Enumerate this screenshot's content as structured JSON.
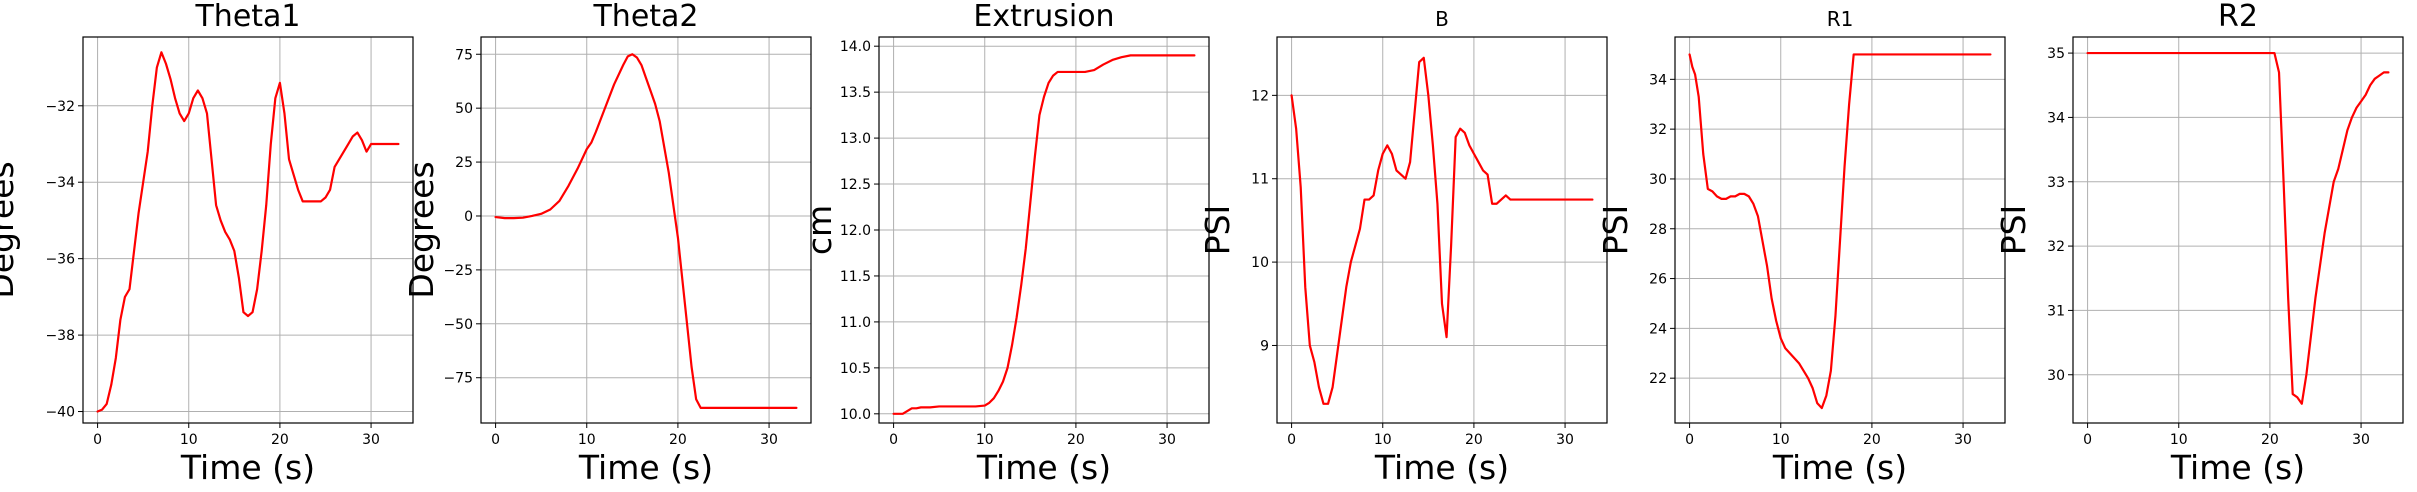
{
  "chart_data": [
    {
      "type": "line",
      "title": "Theta1",
      "xlabel": "Time (s)",
      "ylabel": "Degrees",
      "grid": true,
      "xlim": [
        -1.6,
        34.6
      ],
      "ylim": [
        -40.3,
        -30.2
      ],
      "xticks": [
        0,
        10,
        20,
        30
      ],
      "yticks": [
        -40,
        -38,
        -36,
        -34,
        -32
      ],
      "series": [
        {
          "color": "#ff0000",
          "x": [
            0,
            0.5,
            1,
            1.5,
            2,
            2.5,
            3,
            3.5,
            4,
            4.5,
            5,
            5.5,
            6,
            6.5,
            7,
            7.5,
            8,
            8.5,
            9,
            9.5,
            10,
            10.5,
            11,
            11.5,
            12,
            12.5,
            13,
            13.5,
            14,
            14.5,
            15,
            15.5,
            16,
            16.5,
            17,
            17.5,
            18,
            18.5,
            19,
            19.5,
            20,
            20.5,
            21,
            21.5,
            22,
            22.5,
            23,
            23.5,
            24,
            24.5,
            25,
            25.5,
            26,
            26.5,
            27,
            27.5,
            28,
            28.5,
            29,
            29.5,
            30,
            30.5,
            31,
            31.5,
            32,
            32.5,
            33
          ],
          "y": [
            -40.0,
            -39.95,
            -39.8,
            -39.3,
            -38.6,
            -37.6,
            -37.0,
            -36.8,
            -35.8,
            -34.8,
            -34.0,
            -33.2,
            -32.0,
            -31.0,
            -30.6,
            -30.9,
            -31.3,
            -31.8,
            -32.2,
            -32.4,
            -32.2,
            -31.8,
            -31.6,
            -31.8,
            -32.2,
            -33.4,
            -34.6,
            -35.0,
            -35.3,
            -35.5,
            -35.8,
            -36.5,
            -37.4,
            -37.5,
            -37.4,
            -36.8,
            -35.8,
            -34.6,
            -33.0,
            -31.8,
            -31.4,
            -32.2,
            -33.4,
            -33.8,
            -34.2,
            -34.5,
            -34.5,
            -34.5,
            -34.5,
            -34.5,
            -34.4,
            -34.2,
            -33.6,
            -33.4,
            -33.2,
            -33.0,
            -32.8,
            -32.7,
            -32.9,
            -33.2,
            -33.0,
            -33.0,
            -33.0,
            -33.0,
            -33.0,
            -33.0,
            -33.0
          ]
        }
      ]
    },
    {
      "type": "line",
      "title": "Theta2",
      "xlabel": "Time (s)",
      "ylabel": "Degrees",
      "grid": true,
      "xlim": [
        -1.6,
        34.6
      ],
      "ylim": [
        -96,
        83
      ],
      "xticks": [
        0,
        10,
        20,
        30
      ],
      "yticks": [
        -75,
        -50,
        -25,
        0,
        25,
        50,
        75
      ],
      "series": [
        {
          "color": "#ff0000",
          "x": [
            0,
            1,
            2,
            3,
            4,
            5,
            6,
            7,
            8,
            9,
            10,
            10.5,
            11,
            12,
            13,
            14,
            14.5,
            15,
            15.5,
            16,
            16.5,
            17,
            17.5,
            18,
            19,
            20,
            21,
            21.5,
            22,
            22.5,
            23,
            25,
            27,
            29,
            31,
            33
          ],
          "y": [
            -0.5,
            -1,
            -1,
            -0.8,
            0,
            1,
            3,
            7,
            14,
            22,
            31,
            34,
            39,
            50,
            61,
            70,
            74,
            75,
            73.5,
            70,
            64,
            58,
            52,
            44,
            20,
            -10,
            -50,
            -70,
            -85,
            -89,
            -89,
            -89,
            -89,
            -89,
            -89,
            -89
          ]
        }
      ]
    },
    {
      "type": "line",
      "title": "Extrusion",
      "xlabel": "Time (s)",
      "ylabel": "cm",
      "grid": true,
      "xlim": [
        -1.6,
        34.6
      ],
      "ylim": [
        9.9,
        14.1
      ],
      "xticks": [
        0,
        10,
        20,
        30
      ],
      "yticks": [
        10.0,
        10.5,
        11.0,
        11.5,
        12.0,
        12.5,
        13.0,
        13.5,
        14.0
      ],
      "series": [
        {
          "color": "#ff0000",
          "x": [
            0,
            1,
            1.5,
            2,
            2.5,
            3,
            4,
            5,
            6,
            7,
            8,
            9,
            10,
            10.5,
            11,
            11.5,
            12,
            12.5,
            13,
            13.5,
            14,
            14.5,
            15,
            15.5,
            16,
            16.5,
            17,
            17.5,
            18,
            18.5,
            19,
            20,
            21,
            22,
            23,
            24,
            25,
            26,
            27,
            28,
            29,
            30,
            31,
            32,
            33
          ],
          "y": [
            10.0,
            10.0,
            10.03,
            10.06,
            10.06,
            10.07,
            10.07,
            10.08,
            10.08,
            10.08,
            10.08,
            10.08,
            10.09,
            10.12,
            10.17,
            10.25,
            10.35,
            10.5,
            10.75,
            11.05,
            11.4,
            11.8,
            12.3,
            12.8,
            13.25,
            13.45,
            13.6,
            13.68,
            13.72,
            13.72,
            13.72,
            13.72,
            13.72,
            13.74,
            13.8,
            13.85,
            13.88,
            13.9,
            13.9,
            13.9,
            13.9,
            13.9,
            13.9,
            13.9,
            13.9
          ]
        }
      ]
    },
    {
      "type": "line",
      "title": "B",
      "xlabel": "Time (s)",
      "ylabel": "PSI",
      "grid": true,
      "xlim": [
        -1.6,
        34.6
      ],
      "ylim": [
        8.07,
        12.7
      ],
      "xticks": [
        0,
        10,
        20,
        30
      ],
      "yticks": [
        9,
        10,
        11,
        12
      ],
      "series": [
        {
          "color": "#ff0000",
          "x": [
            0,
            0.5,
            1,
            1.5,
            2,
            2.5,
            3,
            3.5,
            4,
            4.5,
            5,
            5.5,
            6,
            6.5,
            7,
            7.5,
            8,
            8.5,
            9,
            9.5,
            10,
            10.5,
            11,
            11.5,
            12,
            12.5,
            13,
            13.5,
            14,
            14.5,
            15,
            15.5,
            16,
            16.5,
            17,
            17.5,
            18,
            18.5,
            19,
            19.5,
            20,
            20.5,
            21,
            21.5,
            22,
            22.5,
            23,
            23.5,
            24,
            24.5,
            25,
            25.5,
            26,
            26.5,
            27,
            27.5,
            28,
            28.5,
            29,
            29.5,
            30,
            30.5,
            31,
            31.5,
            32,
            32.5,
            33
          ],
          "y": [
            12.0,
            11.6,
            10.9,
            9.7,
            9.0,
            8.8,
            8.5,
            8.3,
            8.3,
            8.5,
            8.9,
            9.3,
            9.7,
            10.0,
            10.2,
            10.4,
            10.75,
            10.75,
            10.8,
            11.1,
            11.3,
            11.4,
            11.3,
            11.1,
            11.05,
            11.0,
            11.2,
            11.8,
            12.4,
            12.45,
            12.0,
            11.4,
            10.7,
            9.5,
            9.1,
            10.2,
            11.5,
            11.6,
            11.55,
            11.4,
            11.3,
            11.2,
            11.1,
            11.05,
            10.7,
            10.7,
            10.75,
            10.8,
            10.75,
            10.75,
            10.75,
            10.75,
            10.75,
            10.75,
            10.75,
            10.75,
            10.75,
            10.75,
            10.75,
            10.75,
            10.75,
            10.75,
            10.75,
            10.75,
            10.75,
            10.75,
            10.75
          ]
        }
      ]
    },
    {
      "type": "line",
      "title": "R1",
      "xlabel": "Time (s)",
      "ylabel": "PSI",
      "grid": true,
      "xlim": [
        -1.6,
        34.6
      ],
      "ylim": [
        20.2,
        35.7
      ],
      "xticks": [
        0,
        10,
        20,
        30
      ],
      "yticks": [
        22,
        24,
        26,
        28,
        30,
        32,
        34
      ],
      "series": [
        {
          "color": "#ff0000",
          "x": [
            0,
            0.3,
            0.6,
            1,
            1.5,
            2,
            2.5,
            3,
            3.5,
            4,
            4.5,
            5,
            5.5,
            6,
            6.5,
            7,
            7.5,
            8,
            8.5,
            9,
            9.5,
            10,
            10.5,
            11,
            11.5,
            12,
            12.5,
            13,
            13.5,
            14,
            14.5,
            15,
            15.5,
            16,
            16.5,
            17,
            17.5,
            18,
            18.5,
            19,
            19.5,
            20,
            20.5,
            21,
            21.5,
            22,
            23,
            25,
            27,
            29,
            31,
            33
          ],
          "y": [
            35.0,
            34.5,
            34.2,
            33.3,
            31.0,
            29.6,
            29.5,
            29.3,
            29.2,
            29.2,
            29.3,
            29.3,
            29.4,
            29.4,
            29.3,
            29.0,
            28.5,
            27.5,
            26.5,
            25.2,
            24.3,
            23.6,
            23.2,
            23.0,
            22.8,
            22.6,
            22.3,
            22.0,
            21.6,
            21.0,
            20.8,
            21.3,
            22.3,
            24.5,
            27.5,
            30.5,
            33.0,
            35.0,
            35.0,
            35.0,
            35.0,
            35.0,
            35.0,
            35.0,
            35.0,
            35.0,
            35.0,
            35.0,
            35.0,
            35.0,
            35.0,
            35.0
          ]
        }
      ]
    },
    {
      "type": "line",
      "title": "R2",
      "xlabel": "Time (s)",
      "ylabel": "PSI",
      "grid": true,
      "xlim": [
        -1.6,
        34.6
      ],
      "ylim": [
        29.25,
        35.25
      ],
      "xticks": [
        0,
        10,
        20,
        30
      ],
      "yticks": [
        30,
        31,
        32,
        33,
        34,
        35
      ],
      "series": [
        {
          "color": "#ff0000",
          "x": [
            0,
            5,
            10,
            15,
            20,
            20.5,
            21,
            21.5,
            22,
            22.5,
            23,
            23.5,
            24,
            24.5,
            25,
            25.5,
            26,
            26.5,
            27,
            27.5,
            28,
            28.5,
            29,
            29.5,
            30,
            30.5,
            31,
            31.5,
            32,
            32.5,
            33
          ],
          "y": [
            35.0,
            35.0,
            35.0,
            35.0,
            35.0,
            35.0,
            34.7,
            33.0,
            31.2,
            29.7,
            29.65,
            29.55,
            30.0,
            30.6,
            31.2,
            31.7,
            32.2,
            32.6,
            33.0,
            33.2,
            33.5,
            33.8,
            34.0,
            34.15,
            34.25,
            34.35,
            34.5,
            34.6,
            34.65,
            34.7,
            34.7
          ]
        }
      ]
    }
  ]
}
